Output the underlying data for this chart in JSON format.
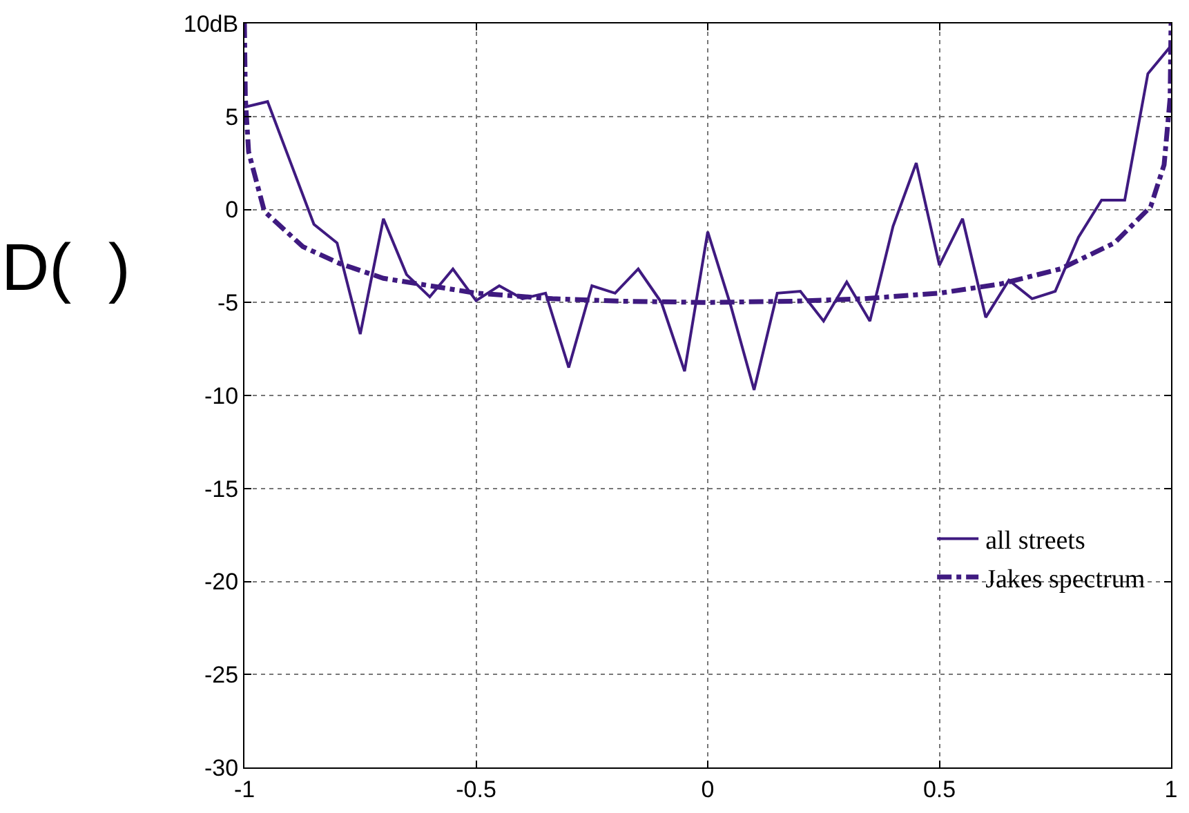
{
  "chart_data": {
    "type": "line",
    "ylabel": "D(  )",
    "xlim": [
      -1,
      1
    ],
    "xticks": [
      -1,
      -0.5,
      0,
      0.5,
      1
    ],
    "ylim": [
      -30,
      10
    ],
    "yticks": [
      -30,
      -25,
      -20,
      -15,
      -10,
      -5,
      0,
      5,
      {
        "value": 10,
        "label": "10dB"
      }
    ],
    "grid": true,
    "legend": "bottom right",
    "series": [
      {
        "name": "all streets",
        "color": "#3f1a80",
        "line_style": "solid",
        "x": [
          -1,
          -0.95,
          -0.9,
          -0.85,
          -0.8,
          -0.75,
          -0.7,
          -0.65,
          -0.6,
          -0.55,
          -0.5,
          -0.45,
          -0.4,
          -0.35,
          -0.3,
          -0.25,
          -0.2,
          -0.15,
          -0.1,
          -0.05,
          0,
          0.05,
          0.1,
          0.15,
          0.2,
          0.25,
          0.3,
          0.35,
          0.4,
          0.45,
          0.5,
          0.55,
          0.6,
          0.65,
          0.7,
          0.75,
          0.8,
          0.85,
          0.9,
          0.95,
          1
        ],
        "values": [
          5.5,
          5.8,
          2.5,
          -0.8,
          -1.8,
          -6.7,
          -0.5,
          -3.5,
          -4.7,
          -3.2,
          -4.9,
          -4.1,
          -4.8,
          -4.5,
          -8.5,
          -4.1,
          -4.5,
          -3.2,
          -5.0,
          -8.7,
          -1.2,
          -5.2,
          -9.7,
          -4.5,
          -4.4,
          -6.0,
          -3.9,
          -6.0,
          -0.9,
          2.5,
          -3.0,
          -0.5,
          -5.8,
          -3.8,
          -4.8,
          -4.4,
          -1.5,
          0.5,
          0.5,
          7.3,
          8.8
        ]
      },
      {
        "name": "Jakes spectrum",
        "color": "#3f1a80",
        "line_style": "dashdot",
        "x": [
          -1,
          -0.998,
          -0.991,
          -0.957,
          -0.874,
          -0.795,
          -0.7,
          -0.6,
          -0.5,
          -0.335,
          -0.19,
          0,
          0.19,
          0.335,
          0.5,
          0.633,
          0.761,
          0.878,
          0.956,
          0.985,
          0.998,
          1
        ],
        "values": [
          10,
          6,
          3.1,
          -0.1,
          -2.0,
          -2.9,
          -3.7,
          -4.1,
          -4.5,
          -4.8,
          -4.93,
          -5,
          -4.93,
          -4.8,
          -4.5,
          -4.0,
          -3.2,
          -1.8,
          0.15,
          2.4,
          6,
          10
        ]
      }
    ]
  }
}
